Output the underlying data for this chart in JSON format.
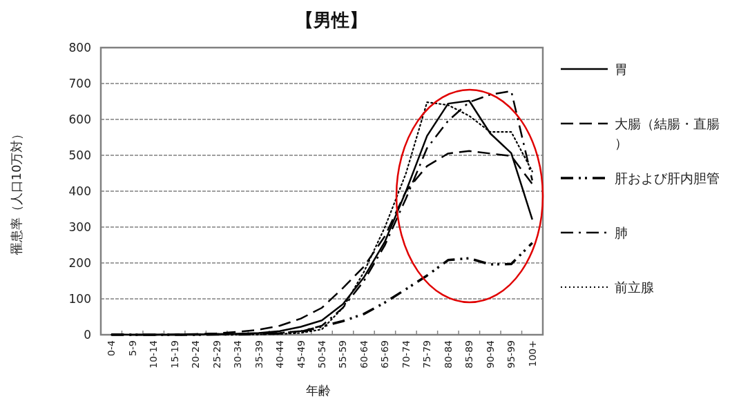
{
  "chart_data": {
    "type": "line",
    "title": "【男性】",
    "xlabel": "年齢",
    "ylabel": "罹患率（人口10万対）",
    "categories": [
      "0-4",
      "5-9",
      "10-14",
      "15-19",
      "20-24",
      "25-29",
      "30-34",
      "35-39",
      "40-44",
      "45-49",
      "50-54",
      "55-59",
      "60-64",
      "65-69",
      "70-74",
      "75-79",
      "80-84",
      "85-89",
      "90-94",
      "95-99",
      "100+"
    ],
    "series": [
      {
        "name": "胃",
        "color": "#000000",
        "line_style": "solid",
        "values": [
          1,
          0,
          0,
          0,
          1,
          2,
          3,
          5,
          10,
          22,
          40,
          85,
          160,
          260,
          400,
          554,
          644,
          652,
          561,
          506,
          321
        ]
      },
      {
        "name": "大腸（結腸・直腸）",
        "color": "#000000",
        "line_style": "dashed",
        "values": [
          1,
          0,
          0,
          1,
          2,
          4,
          8,
          14,
          25,
          45,
          75,
          130,
          190,
          275,
          400,
          470,
          505,
          512,
          505,
          498,
          420
        ]
      },
      {
        "name": "肝および肝内胆管",
        "color": "#000000",
        "line_style": "dashdotdot",
        "values": [
          0,
          0,
          0,
          0,
          0,
          1,
          1,
          2,
          4,
          8,
          23,
          38,
          58,
          90,
          127,
          165,
          208,
          213,
          196,
          197,
          256
        ]
      },
      {
        "name": "肺",
        "color": "#000000",
        "line_style": "dashdot",
        "values": [
          0,
          0,
          0,
          0,
          0,
          1,
          2,
          3,
          5,
          10,
          25,
          75,
          150,
          250,
          380,
          520,
          596,
          648,
          669,
          679,
          430
        ]
      },
      {
        "name": "前立腺",
        "color": "#000000",
        "line_style": "dotted",
        "values": [
          0,
          0,
          0,
          0,
          0,
          0,
          0,
          1,
          2,
          5,
          15,
          75,
          175,
          300,
          450,
          648,
          640,
          610,
          565,
          565,
          455
        ]
      }
    ],
    "ylim": [
      0,
      800
    ],
    "yticks": [
      0,
      100,
      200,
      300,
      400,
      500,
      600,
      700,
      800
    ],
    "grid": "y",
    "legend": "right",
    "marker": "none"
  }
}
